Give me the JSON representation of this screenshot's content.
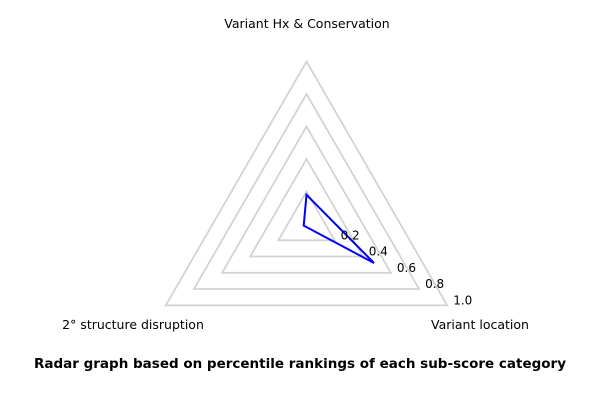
{
  "colors": {
    "background": "#ffffff",
    "grid_line": "#d3d3d3",
    "data_line": "#0000ff",
    "text": "#000000"
  },
  "chart_data": {
    "type": "radar",
    "categories": [
      "Variant Hx & Conservation",
      "Variant location",
      "2° structure disruption"
    ],
    "values": [
      0.18,
      0.48,
      0.02
    ],
    "grid_levels": [
      0.2,
      0.4,
      0.6,
      0.8,
      1.0
    ],
    "tick_labels": [
      "0.2",
      "0.4",
      "0.6",
      "0.8",
      "1.0"
    ],
    "ylim": [
      0,
      1.0
    ],
    "grid_style": "concentric-triangles",
    "legend": "none",
    "title": "",
    "caption": "Radar graph based on percentile rankings of each sub-score category"
  }
}
